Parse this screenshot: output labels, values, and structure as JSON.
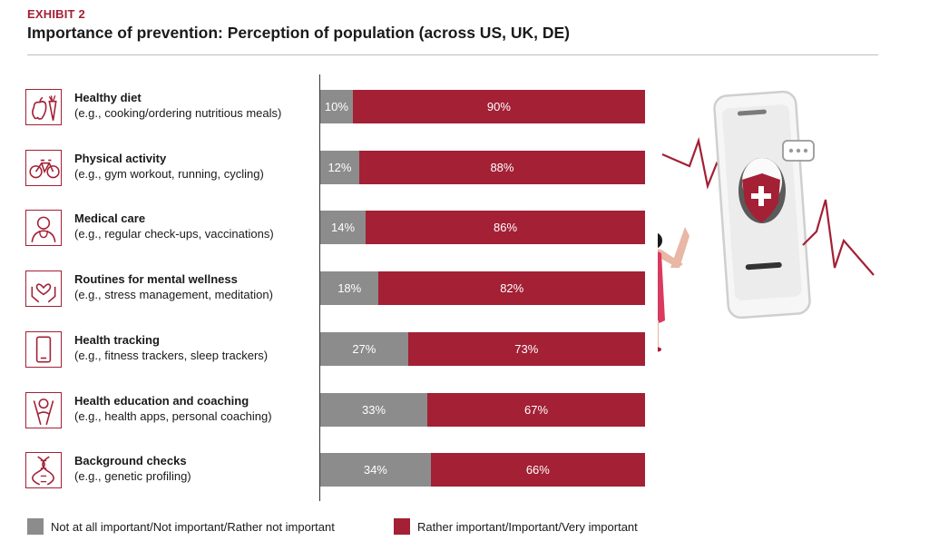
{
  "header": {
    "exhibit": "EXHIBIT 2",
    "title": "Importance of prevention: Perception of population (across US, UK, DE)"
  },
  "colors": {
    "accent": "#a32035",
    "gray": "#8c8c8c"
  },
  "rows": [
    {
      "title": "Healthy diet",
      "subtitle": "(e.g., cooking/ordering nutritious meals)",
      "icon": "apple-carrot-icon",
      "not_important": "10%",
      "important": "90%"
    },
    {
      "title": "Physical activity",
      "subtitle": "(e.g., gym workout, running, cycling)",
      "icon": "bicycle-icon",
      "not_important": "12%",
      "important": "88%"
    },
    {
      "title": "Medical care",
      "subtitle": "(e.g., regular check-ups, vaccinations)",
      "icon": "doctor-icon",
      "not_important": "14%",
      "important": "86%"
    },
    {
      "title": "Routines for mental wellness",
      "subtitle": "(e.g., stress management, meditation)",
      "icon": "hands-heart-icon",
      "not_important": "18%",
      "important": "82%"
    },
    {
      "title": "Health tracking",
      "subtitle": "(e.g., fitness trackers, sleep trackers)",
      "icon": "smartphone-icon",
      "not_important": "27%",
      "important": "73%"
    },
    {
      "title": "Health education and coaching",
      "subtitle": "(e.g., health apps, personal coaching)",
      "icon": "coach-icon",
      "not_important": "33%",
      "important": "67%"
    },
    {
      "title": "Background checks",
      "subtitle": "(e.g., genetic profiling)",
      "icon": "dna-icon",
      "not_important": "34%",
      "important": "66%"
    }
  ],
  "legend": {
    "not_important": "Not at all important/Not important/Rather not important",
    "important": "Rather important/Important/Very important"
  },
  "chart_data": {
    "type": "bar",
    "orientation": "horizontal",
    "stacked": true,
    "title": "Importance of prevention: Perception of population (across US, UK, DE)",
    "categories": [
      "Healthy diet",
      "Physical activity",
      "Medical care",
      "Routines for mental wellness",
      "Health tracking",
      "Health education and coaching",
      "Background checks"
    ],
    "series": [
      {
        "name": "Not at all important/Not important/Rather not important",
        "color": "#8c8c8c",
        "values": [
          10,
          12,
          14,
          18,
          27,
          33,
          34
        ]
      },
      {
        "name": "Rather important/Important/Very important",
        "color": "#a32035",
        "values": [
          90,
          88,
          86,
          82,
          73,
          67,
          66
        ]
      }
    ],
    "xlim": [
      0,
      100
    ],
    "legend_position": "bottom",
    "grid": false
  }
}
